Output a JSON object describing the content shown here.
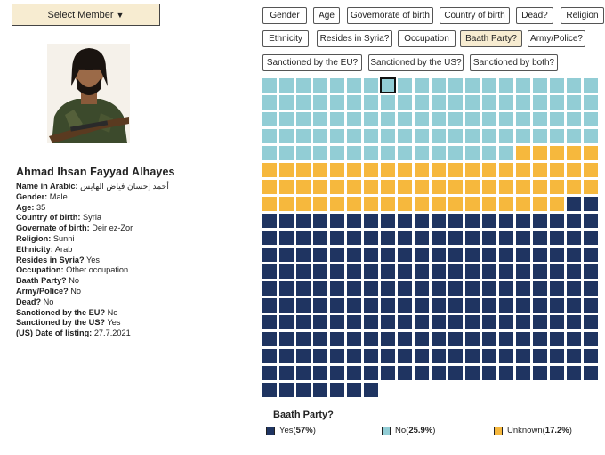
{
  "select_member": {
    "label": "Select Member"
  },
  "profile": {
    "name": "Ahmad Ihsan Fayyad Alhayes",
    "fields": [
      {
        "label": "Name in Arabic:",
        "value": "أحمد إحسان فياض الهايس"
      },
      {
        "label": "Gender:",
        "value": "Male"
      },
      {
        "label": "Age:",
        "value": "35"
      },
      {
        "label": "Country of birth:",
        "value": "Syria"
      },
      {
        "label": "Governate of birth:",
        "value": "Deir ez-Zor"
      },
      {
        "label": "Religion:",
        "value": "Sunni"
      },
      {
        "label": "Ethnicity:",
        "value": "Arab"
      },
      {
        "label": "Resides in Syria?",
        "value": "Yes"
      },
      {
        "label": "Occupation:",
        "value": "Other occupation"
      },
      {
        "label": "Baath Party?",
        "value": "No"
      },
      {
        "label": "Army/Police?",
        "value": "No"
      },
      {
        "label": "Dead?",
        "value": "No"
      },
      {
        "label": "Sanctioned by the EU?",
        "value": "No"
      },
      {
        "label": "Sanctioned by the US?",
        "value": "Yes"
      },
      {
        "label": "(US) Date of listing:",
        "value": "27.7.2021"
      }
    ]
  },
  "filters": [
    {
      "label": "Gender",
      "active": false
    },
    {
      "label": "Age",
      "active": false
    },
    {
      "label": "Governorate of birth",
      "active": false
    },
    {
      "label": "Country of birth",
      "active": false
    },
    {
      "label": "Dead?",
      "active": false
    },
    {
      "label": "Religion",
      "active": false
    },
    {
      "label": "Ethnicity",
      "active": false
    },
    {
      "label": "Resides in Syria?",
      "active": false
    },
    {
      "label": "Occupation",
      "active": false
    },
    {
      "label": "Baath Party?",
      "active": true
    },
    {
      "label": "Army/Police?",
      "active": false
    },
    {
      "label": "Sanctioned by the EU?",
      "active": false
    },
    {
      "label": "Sanctioned by the US?",
      "active": false
    },
    {
      "label": "Sanctioned by both?",
      "active": false
    }
  ],
  "chart_data": {
    "type": "waffle",
    "title": "Baath Party?",
    "columns": 20,
    "order": [
      "No",
      "Unknown",
      "Yes"
    ],
    "categories": [
      {
        "name": "Yes",
        "count": 209,
        "percent_label": "57%",
        "color": "#1f3461"
      },
      {
        "name": "No",
        "count": 95,
        "percent_label": "25.9%",
        "color": "#92cdd5"
      },
      {
        "name": "Unknown",
        "count": 63,
        "percent_label": "17.2%",
        "color": "#f6b83d"
      }
    ],
    "highlighted_member_index": 7
  },
  "legend": [
    {
      "name": "Yes",
      "pct": "57%",
      "color": "#1f3461"
    },
    {
      "name": "No",
      "pct": "25.9%",
      "color": "#92cdd5"
    },
    {
      "name": "Unknown",
      "pct": "17.2%",
      "color": "#f6b83d"
    }
  ]
}
